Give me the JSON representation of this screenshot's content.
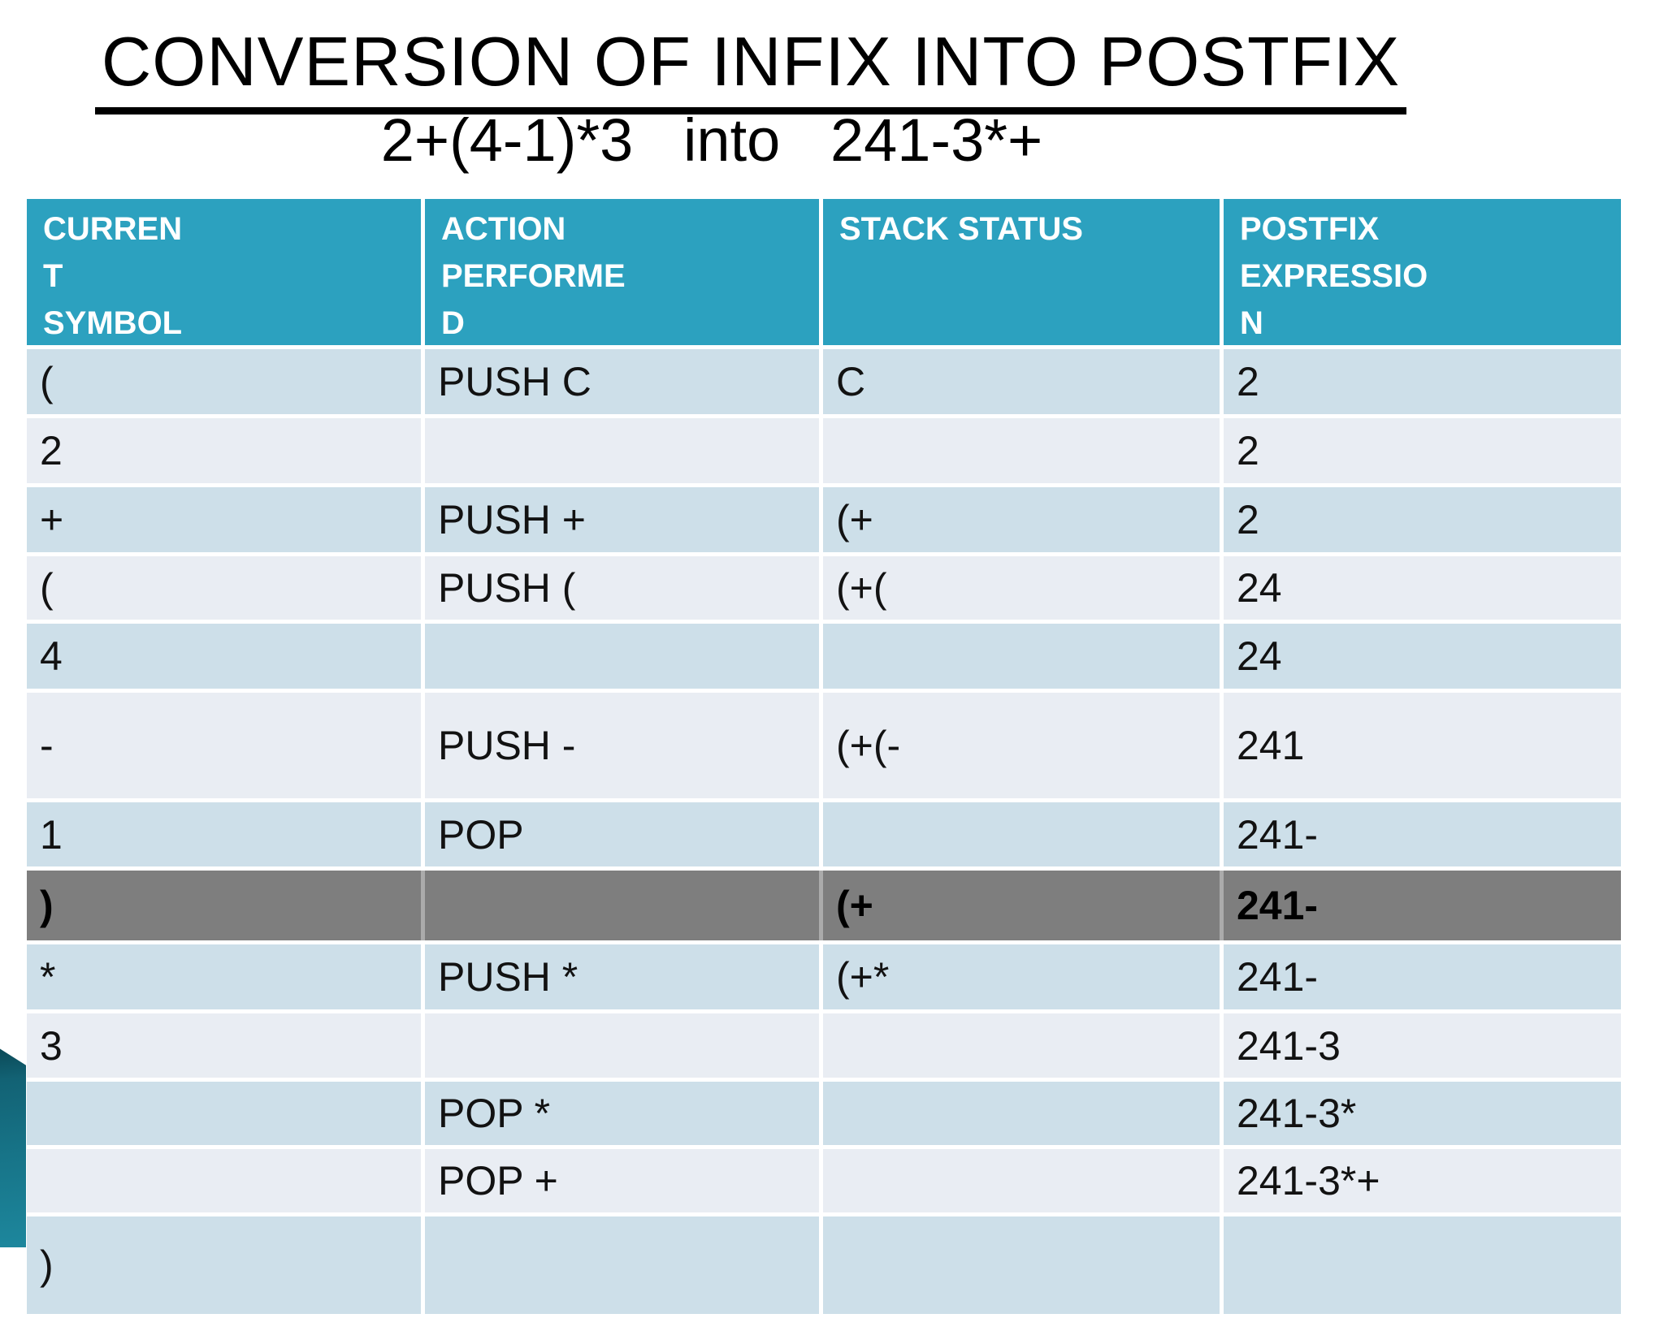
{
  "slide": {
    "title": "CONVERSION OF INFIX INTO POSTFIX",
    "subtitle": "2+(4-1)*3   into   241-3*+",
    "colors": {
      "header_teal": "#2CA1BF",
      "band_blue": "#CDDFE9",
      "band_light": "#E9EDF3",
      "highlight_gray": "#7E7E7E",
      "ribbon_teal": "#177488",
      "header_text": "#FFFFFF",
      "body_text": "#121212"
    }
  },
  "table": {
    "headers": [
      "CURREN\nT\nSYMBOL",
      "ACTION\nPERFORME\nD",
      "STACK STATUS",
      "POSTFIX\nEXPRESSIO\nN"
    ],
    "highlighted_row_index": 7,
    "rows": [
      {
        "symbol": "(",
        "action": "PUSH C",
        "stack": "C",
        "postfix": "2"
      },
      {
        "symbol": "2",
        "action": "",
        "stack": "",
        "postfix": "2"
      },
      {
        "symbol": "+",
        "action": "PUSH +",
        "stack": "(+",
        "postfix": "2"
      },
      {
        "symbol": "(",
        "action": "PUSH (",
        "stack": "(+(",
        "postfix": "24"
      },
      {
        "symbol": "4",
        "action": "",
        "stack": "",
        "postfix": "24"
      },
      {
        "symbol": "-",
        "action": "PUSH -",
        "stack": "(+(-",
        "postfix": "241"
      },
      {
        "symbol": "1",
        "action": "POP",
        "stack": "",
        "postfix": "241-"
      },
      {
        "symbol": ")",
        "action": "",
        "stack": "(+",
        "postfix": "241-"
      },
      {
        "symbol": "*",
        "action": "PUSH *",
        "stack": "(+*",
        "postfix": "241-"
      },
      {
        "symbol": "3",
        "action": "",
        "stack": "",
        "postfix": "241-3"
      },
      {
        "symbol": "",
        "action": "POP *",
        "stack": "",
        "postfix": "241-3*"
      },
      {
        "symbol": "",
        "action": "POP +",
        "stack": "",
        "postfix": "241-3*+"
      },
      {
        "symbol": ")",
        "action": "",
        "stack": "",
        "postfix": ""
      }
    ]
  }
}
